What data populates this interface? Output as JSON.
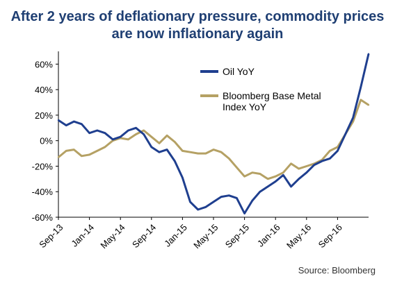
{
  "chart_data": {
    "type": "line",
    "title_lines": [
      "After 2 years of deflationary pressure, commodity prices",
      "are now inflationary again"
    ],
    "source": "Source: Bloomberg",
    "y_ticks": [
      "60%",
      "40%",
      "20%",
      "0%",
      "-20%",
      "-40%",
      "-60%"
    ],
    "x_ticks": [
      "Sep-13",
      "Jan-14",
      "May-14",
      "Sep-14",
      "Jan-15",
      "May-15",
      "Sep-15",
      "Jan-16",
      "May-16",
      "Sep-16"
    ],
    "ylim": [
      -60,
      70
    ],
    "legend_placement": "top-center",
    "colors": {
      "oil": "#1f3f8f",
      "metal": "#b5a164",
      "title": "#1f3f73"
    },
    "series": [
      {
        "name": "Oil YoY",
        "legend_lines": [
          "Oil YoY"
        ],
        "x": [
          "2013-09",
          "2013-10",
          "2013-11",
          "2013-12",
          "2014-01",
          "2014-02",
          "2014-03",
          "2014-04",
          "2014-05",
          "2014-06",
          "2014-07",
          "2014-08",
          "2014-09",
          "2014-10",
          "2014-11",
          "2014-12",
          "2015-01",
          "2015-02",
          "2015-03",
          "2015-04",
          "2015-05",
          "2015-06",
          "2015-07",
          "2015-08",
          "2015-09",
          "2015-10",
          "2015-11",
          "2015-12",
          "2016-01",
          "2016-02",
          "2016-03",
          "2016-04",
          "2016-05",
          "2016-06",
          "2016-07",
          "2016-08",
          "2016-09",
          "2016-10",
          "2016-11",
          "2016-12",
          "2017-01"
        ],
        "values": [
          16,
          12,
          15,
          13,
          6,
          8,
          6,
          1,
          3,
          8,
          10,
          5,
          -5,
          -9,
          -7,
          -16,
          -29,
          -48,
          -54,
          -52,
          -48,
          -44,
          -43,
          -45,
          -57,
          -47,
          -40,
          -36,
          -32,
          -27,
          -36,
          -30,
          -25,
          -19,
          -16,
          -14,
          -8,
          5,
          18,
          42,
          68
        ]
      },
      {
        "name": "Bloomberg Base Metal Index YoY",
        "legend_lines": [
          "Bloomberg Base Metal",
          "Index YoY"
        ],
        "x": [
          "2013-09",
          "2013-10",
          "2013-11",
          "2013-12",
          "2014-01",
          "2014-02",
          "2014-03",
          "2014-04",
          "2014-05",
          "2014-06",
          "2014-07",
          "2014-08",
          "2014-09",
          "2014-10",
          "2014-11",
          "2014-12",
          "2015-01",
          "2015-02",
          "2015-03",
          "2015-04",
          "2015-05",
          "2015-06",
          "2015-07",
          "2015-08",
          "2015-09",
          "2015-10",
          "2015-11",
          "2015-12",
          "2016-01",
          "2016-02",
          "2016-03",
          "2016-04",
          "2016-05",
          "2016-06",
          "2016-07",
          "2016-08",
          "2016-09",
          "2016-10",
          "2016-11",
          "2016-12",
          "2017-01"
        ],
        "values": [
          -13,
          -8,
          -7,
          -12,
          -11,
          -8,
          -5,
          0,
          2,
          1,
          5,
          8,
          3,
          -2,
          4,
          -1,
          -8,
          -9,
          -10,
          -10,
          -7,
          -9,
          -14,
          -21,
          -28,
          -25,
          -26,
          -30,
          -28,
          -25,
          -18,
          -22,
          -20,
          -18,
          -15,
          -8,
          -5,
          5,
          15,
          32,
          28
        ]
      }
    ]
  }
}
